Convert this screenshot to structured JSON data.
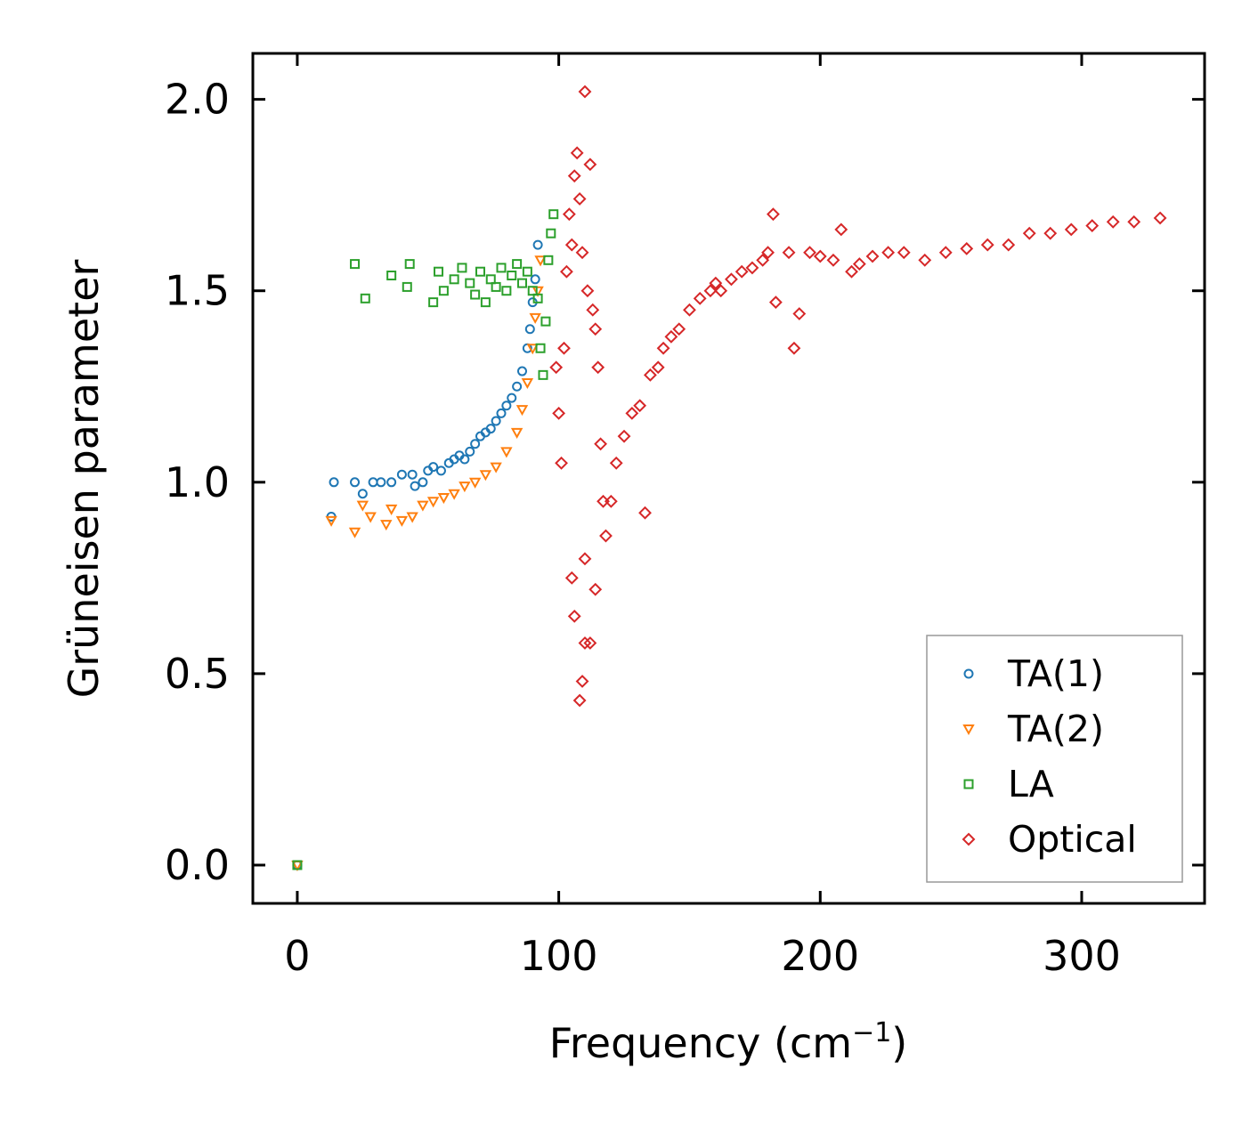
{
  "chart_data": {
    "type": "scatter",
    "title": "",
    "xlabel": "Frequency (cm",
    "xlabel_sup": "−1",
    "xlabel_close": ")",
    "ylabel": "Grüneisen parameter",
    "xlim": [
      -17,
      347
    ],
    "ylim": [
      -0.1,
      2.12
    ],
    "xticks": [
      0,
      100,
      200,
      300
    ],
    "xtick_labels": [
      "0",
      "100",
      "200",
      "300"
    ],
    "yticks": [
      0.0,
      0.5,
      1.0,
      1.5,
      2.0
    ],
    "ytick_labels": [
      "0.0",
      "0.5",
      "1.0",
      "1.5",
      "2.0"
    ],
    "grid": false,
    "legend_position": "lower-right",
    "series": [
      {
        "name": "TA(1)",
        "color": "#1f77b4",
        "marker": "circle",
        "points": [
          [
            0,
            0.0
          ],
          [
            13,
            0.91
          ],
          [
            14,
            1.0
          ],
          [
            22,
            1.0
          ],
          [
            25,
            0.97
          ],
          [
            29,
            1.0
          ],
          [
            32,
            1.0
          ],
          [
            36,
            1.0
          ],
          [
            40,
            1.02
          ],
          [
            44,
            1.02
          ],
          [
            45,
            0.99
          ],
          [
            48,
            1.0
          ],
          [
            50,
            1.03
          ],
          [
            52,
            1.04
          ],
          [
            55,
            1.03
          ],
          [
            58,
            1.05
          ],
          [
            60,
            1.06
          ],
          [
            62,
            1.07
          ],
          [
            64,
            1.06
          ],
          [
            66,
            1.08
          ],
          [
            68,
            1.1
          ],
          [
            70,
            1.12
          ],
          [
            72,
            1.13
          ],
          [
            74,
            1.14
          ],
          [
            76,
            1.16
          ],
          [
            78,
            1.18
          ],
          [
            80,
            1.2
          ],
          [
            82,
            1.22
          ],
          [
            84,
            1.25
          ],
          [
            86,
            1.29
          ],
          [
            88,
            1.35
          ],
          [
            89,
            1.4
          ],
          [
            90,
            1.47
          ],
          [
            91,
            1.53
          ],
          [
            92,
            1.62
          ]
        ]
      },
      {
        "name": "TA(2)",
        "color": "#ff7f0e",
        "marker": "triangle-down",
        "points": [
          [
            0,
            0.0
          ],
          [
            13,
            0.9
          ],
          [
            22,
            0.87
          ],
          [
            25,
            0.94
          ],
          [
            28,
            0.91
          ],
          [
            34,
            0.89
          ],
          [
            36,
            0.93
          ],
          [
            40,
            0.9
          ],
          [
            44,
            0.91
          ],
          [
            48,
            0.94
          ],
          [
            52,
            0.95
          ],
          [
            56,
            0.96
          ],
          [
            60,
            0.97
          ],
          [
            64,
            0.99
          ],
          [
            68,
            1.0
          ],
          [
            72,
            1.02
          ],
          [
            76,
            1.04
          ],
          [
            80,
            1.08
          ],
          [
            84,
            1.13
          ],
          [
            86,
            1.19
          ],
          [
            88,
            1.26
          ],
          [
            90,
            1.35
          ],
          [
            91,
            1.43
          ],
          [
            92,
            1.5
          ],
          [
            93,
            1.58
          ]
        ]
      },
      {
        "name": "LA",
        "color": "#2ca02c",
        "marker": "square",
        "points": [
          [
            0,
            0.0
          ],
          [
            22,
            1.57
          ],
          [
            26,
            1.48
          ],
          [
            36,
            1.54
          ],
          [
            42,
            1.51
          ],
          [
            43,
            1.57
          ],
          [
            52,
            1.47
          ],
          [
            54,
            1.55
          ],
          [
            56,
            1.5
          ],
          [
            60,
            1.53
          ],
          [
            63,
            1.56
          ],
          [
            66,
            1.52
          ],
          [
            68,
            1.49
          ],
          [
            70,
            1.55
          ],
          [
            72,
            1.47
          ],
          [
            74,
            1.53
          ],
          [
            76,
            1.51
          ],
          [
            78,
            1.56
          ],
          [
            80,
            1.5
          ],
          [
            82,
            1.54
          ],
          [
            84,
            1.57
          ],
          [
            86,
            1.52
          ],
          [
            88,
            1.55
          ],
          [
            90,
            1.5
          ],
          [
            92,
            1.48
          ],
          [
            93,
            1.35
          ],
          [
            94,
            1.28
          ],
          [
            95,
            1.42
          ],
          [
            96,
            1.58
          ],
          [
            97,
            1.65
          ],
          [
            98,
            1.7
          ]
        ]
      },
      {
        "name": "Optical",
        "color": "#d62728",
        "marker": "diamond",
        "points": [
          [
            99,
            1.3
          ],
          [
            100,
            1.18
          ],
          [
            101,
            1.05
          ],
          [
            102,
            1.35
          ],
          [
            103,
            1.55
          ],
          [
            104,
            1.7
          ],
          [
            105,
            1.62
          ],
          [
            106,
            1.8
          ],
          [
            107,
            1.86
          ],
          [
            108,
            1.74
          ],
          [
            109,
            1.6
          ],
          [
            110,
            2.02
          ],
          [
            111,
            1.5
          ],
          [
            112,
            1.83
          ],
          [
            113,
            1.45
          ],
          [
            114,
            1.4
          ],
          [
            115,
            1.3
          ],
          [
            116,
            1.1
          ],
          [
            117,
            0.95
          ],
          [
            108,
            0.43
          ],
          [
            109,
            0.48
          ],
          [
            110,
            0.58
          ],
          [
            112,
            0.58
          ],
          [
            106,
            0.65
          ],
          [
            105,
            0.75
          ],
          [
            110,
            0.8
          ],
          [
            114,
            0.72
          ],
          [
            118,
            0.86
          ],
          [
            120,
            0.95
          ],
          [
            122,
            1.05
          ],
          [
            125,
            1.12
          ],
          [
            128,
            1.18
          ],
          [
            131,
            1.2
          ],
          [
            133,
            0.92
          ],
          [
            135,
            1.28
          ],
          [
            138,
            1.3
          ],
          [
            140,
            1.35
          ],
          [
            143,
            1.38
          ],
          [
            146,
            1.4
          ],
          [
            150,
            1.45
          ],
          [
            154,
            1.48
          ],
          [
            158,
            1.5
          ],
          [
            160,
            1.52
          ],
          [
            162,
            1.5
          ],
          [
            166,
            1.53
          ],
          [
            170,
            1.55
          ],
          [
            174,
            1.56
          ],
          [
            178,
            1.58
          ],
          [
            180,
            1.6
          ],
          [
            182,
            1.7
          ],
          [
            183,
            1.47
          ],
          [
            188,
            1.6
          ],
          [
            190,
            1.35
          ],
          [
            192,
            1.44
          ],
          [
            196,
            1.6
          ],
          [
            200,
            1.59
          ],
          [
            205,
            1.58
          ],
          [
            208,
            1.66
          ],
          [
            212,
            1.55
          ],
          [
            215,
            1.57
          ],
          [
            220,
            1.59
          ],
          [
            226,
            1.6
          ],
          [
            232,
            1.6
          ],
          [
            240,
            1.58
          ],
          [
            248,
            1.6
          ],
          [
            256,
            1.61
          ],
          [
            264,
            1.62
          ],
          [
            272,
            1.62
          ],
          [
            280,
            1.65
          ],
          [
            288,
            1.65
          ],
          [
            296,
            1.66
          ],
          [
            304,
            1.67
          ],
          [
            312,
            1.68
          ],
          [
            320,
            1.68
          ],
          [
            330,
            1.69
          ]
        ]
      }
    ]
  }
}
